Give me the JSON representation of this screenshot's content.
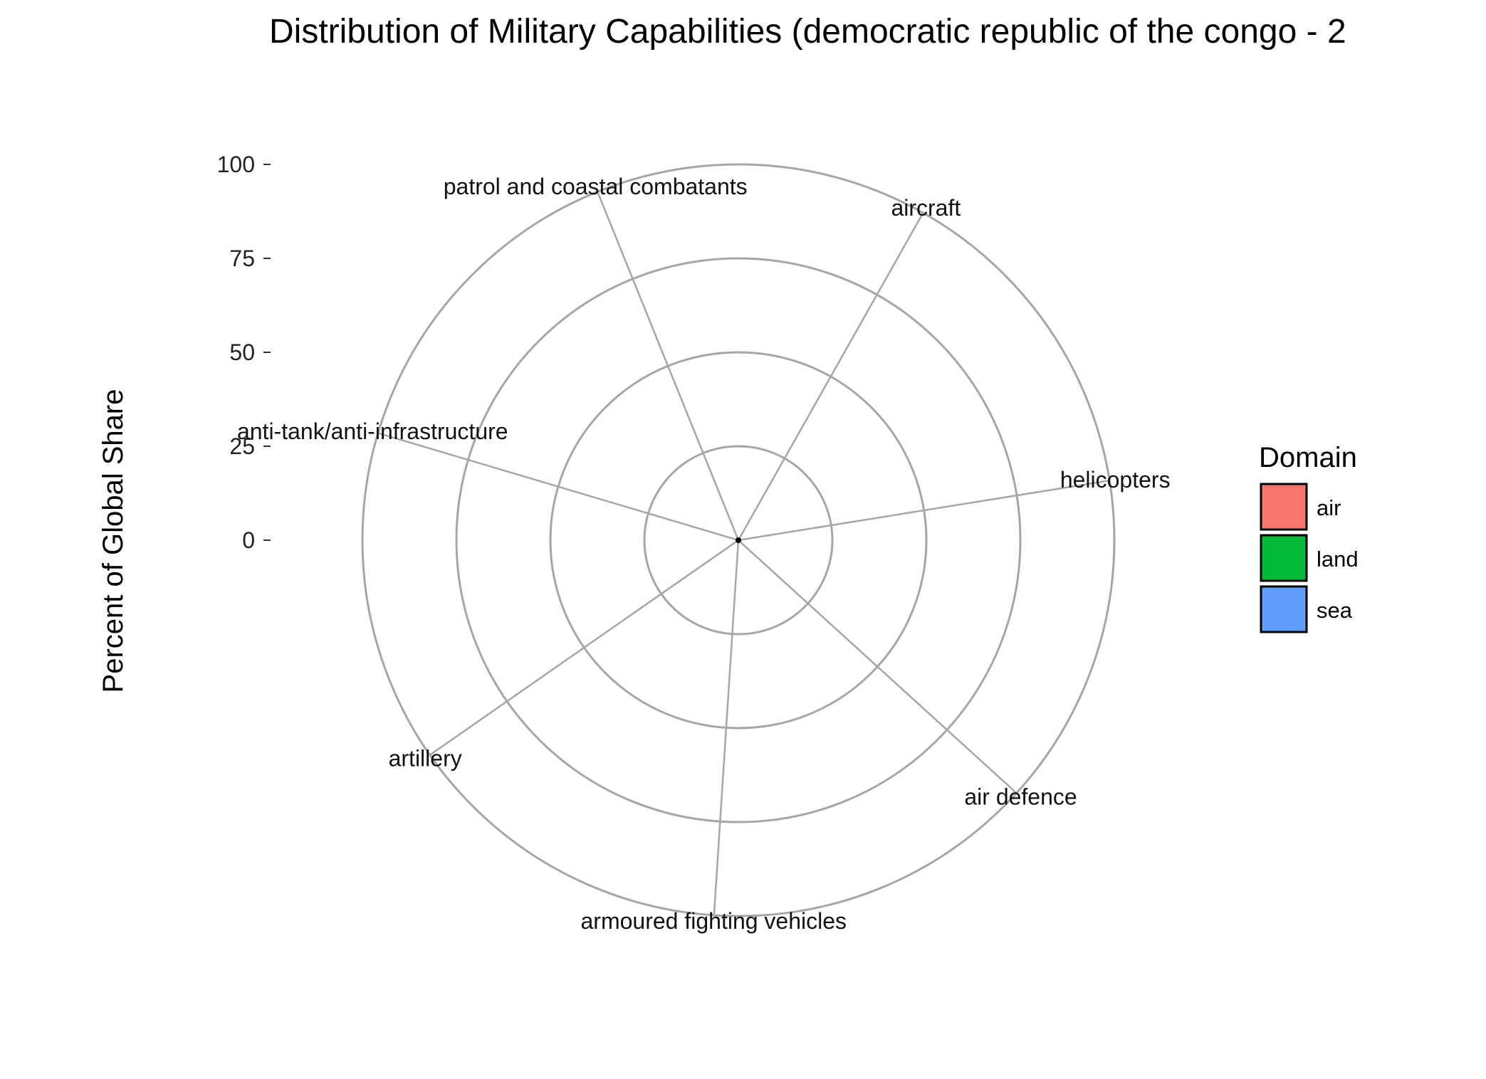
{
  "chart_data": {
    "type": "bar",
    "coord": "polar",
    "title": "Distribution of Military Capabilities (democratic republic of the congo - 2",
    "xlabel": "",
    "ylabel": "Percent of Global Share",
    "ylim": [
      0,
      100
    ],
    "yticks": [
      "0",
      "25",
      "50",
      "75",
      "100"
    ],
    "categories": [
      "aircraft",
      "helicopters",
      "air defence",
      "armoured fighting vehicles",
      "artillery",
      "anti-tank/anti-infrastructure",
      "patrol and coastal combatants"
    ],
    "series": [
      {
        "name": "air",
        "color": "#F8766D",
        "values": [
          0,
          0,
          0,
          0,
          0,
          0,
          0
        ]
      },
      {
        "name": "land",
        "color": "#00BA38",
        "values": [
          0,
          0,
          0,
          0,
          0,
          0,
          0
        ]
      },
      {
        "name": "sea",
        "color": "#619CFF",
        "values": [
          0,
          0,
          0,
          0,
          0,
          0,
          0
        ]
      }
    ],
    "legend": {
      "title": "Domain",
      "position": "right",
      "items": [
        {
          "label": "air",
          "color": "#F8766D"
        },
        {
          "label": "land",
          "color": "#00BA38"
        },
        {
          "label": "sea",
          "color": "#619CFF"
        }
      ]
    },
    "grid": true
  }
}
